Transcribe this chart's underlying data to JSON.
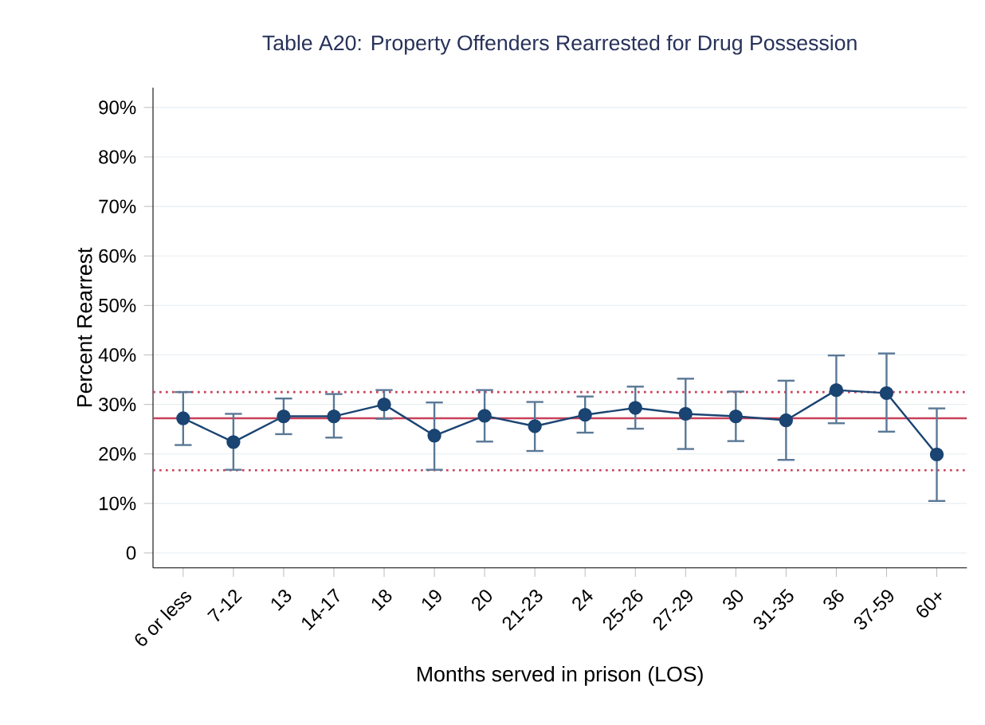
{
  "chart_data": {
    "type": "line",
    "title": "Table A20: Property Offenders Rearrested for Drug Possession",
    "xlabel": "Months served in prison (LOS)",
    "ylabel": "Percent Rearrest",
    "categories": [
      "6 or less",
      "7-12",
      "13",
      "14-17",
      "18",
      "19",
      "20",
      "21-23",
      "24",
      "25-26",
      "27-29",
      "30",
      "31-35",
      "36",
      "37-59",
      "60+"
    ],
    "series": [
      {
        "color": "#1a4472",
        "values": [
          27.2,
          22.4,
          27.6,
          27.6,
          30.0,
          23.7,
          27.7,
          25.6,
          27.9,
          29.3,
          28.1,
          27.6,
          26.8,
          32.9,
          32.3,
          19.9
        ],
        "errors": [
          [
            21.8,
            32.5
          ],
          [
            16.8,
            28.1
          ],
          [
            24.0,
            31.2
          ],
          [
            23.3,
            32.1
          ],
          [
            27.1,
            32.9
          ],
          [
            16.8,
            30.4
          ],
          [
            22.5,
            32.9
          ],
          [
            20.6,
            30.5
          ],
          [
            24.3,
            31.6
          ],
          [
            25.1,
            33.6
          ],
          [
            21.0,
            35.2
          ],
          [
            22.6,
            32.6
          ],
          [
            18.8,
            34.8
          ],
          [
            26.2,
            39.9
          ],
          [
            24.5,
            40.3
          ],
          [
            10.5,
            29.2
          ]
        ]
      }
    ],
    "ylim": [
      -3,
      94
    ],
    "yticks": [
      {
        "value": 0,
        "label": "0"
      },
      {
        "value": 10,
        "label": "10%"
      },
      {
        "value": 20,
        "label": "20%"
      },
      {
        "value": 30,
        "label": "30%"
      },
      {
        "value": 40,
        "label": "40%"
      },
      {
        "value": 50,
        "label": "50%"
      },
      {
        "value": 60,
        "label": "60%"
      },
      {
        "value": 70,
        "label": "70%"
      },
      {
        "value": 80,
        "label": "80%"
      },
      {
        "value": 90,
        "label": "90%"
      }
    ],
    "ref_lines": [
      {
        "axis": "y",
        "value": 27.2,
        "color": "#c8405a",
        "line_style": "solid"
      },
      {
        "axis": "y",
        "value": 32.5,
        "color": "#c8405a",
        "line_style": "dotted"
      },
      {
        "axis": "y",
        "value": 16.7,
        "color": "#c8405a",
        "line_style": "dotted"
      }
    ],
    "grid": "y",
    "marker": "circle",
    "line_style": "solid"
  }
}
